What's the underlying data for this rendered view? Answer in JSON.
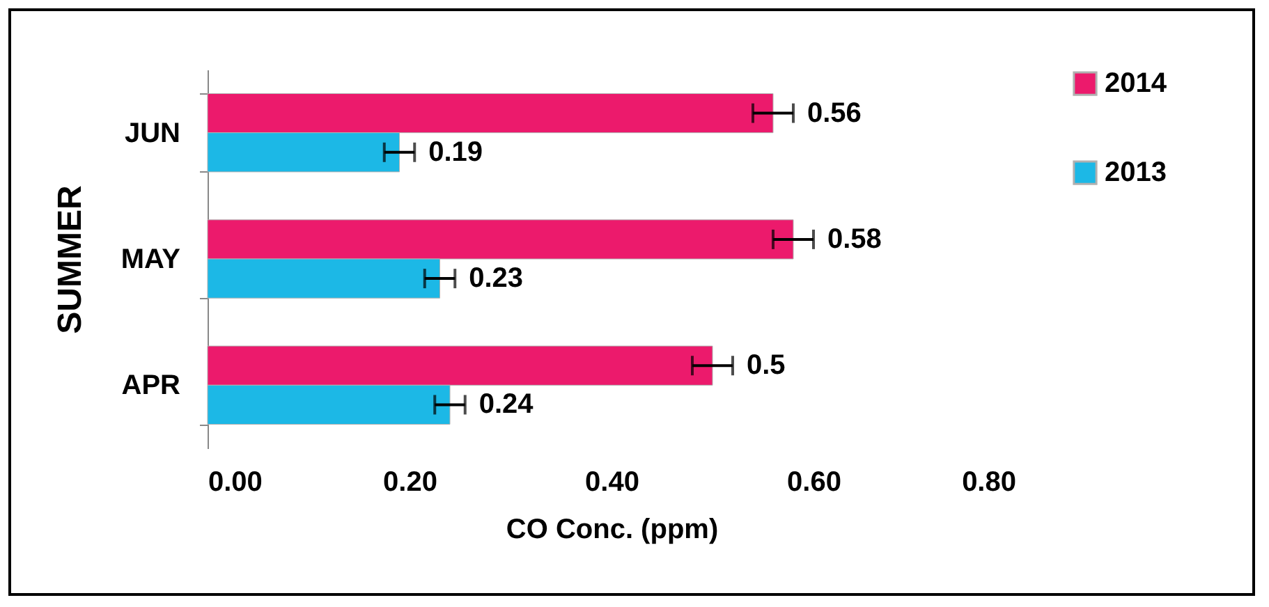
{
  "chart_data": {
    "type": "bar",
    "orientation": "horizontal",
    "categories": [
      "JUN",
      "MAY",
      "APR"
    ],
    "series": [
      {
        "name": "2014",
        "color": "#ec1a6c",
        "values": [
          0.56,
          0.58,
          0.5
        ],
        "errors": [
          0.02,
          0.02,
          0.02
        ]
      },
      {
        "name": "2013",
        "color": "#1cb8e6",
        "values": [
          0.19,
          0.23,
          0.24
        ],
        "errors": [
          0.015,
          0.015,
          0.015
        ]
      }
    ],
    "xlabel": "CO Conc. (ppm)",
    "ylabel": "SUMMER",
    "xlim": [
      0,
      0.8
    ],
    "xticks": [
      {
        "value": 0,
        "label": "0.00"
      },
      {
        "value": 0.2,
        "label": "0.20"
      },
      {
        "value": 0.4,
        "label": "0.40"
      },
      {
        "value": 0.6,
        "label": "0.60"
      },
      {
        "value": 0.8,
        "label": "0.80"
      }
    ],
    "data_labels": true,
    "legend": "right",
    "grid": false
  }
}
